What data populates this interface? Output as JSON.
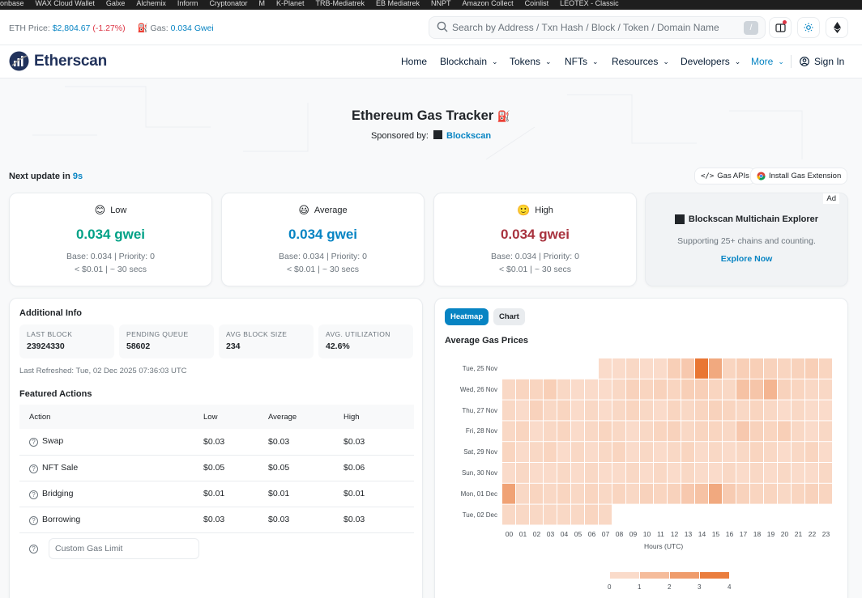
{
  "bookmarks": [
    "onbase",
    "WAX Cloud Wallet",
    "Galxe",
    "Alchemix",
    "Inform",
    "Cryptonator",
    "M",
    "K-Planet",
    "TRB-Mediatrek",
    "EB Mediatrek",
    "NNPT",
    "Amazon Collect",
    "Coinlist",
    "LEOTEX - Classic"
  ],
  "topbar": {
    "eth_price_label": "ETH Price:",
    "eth_price_value": "$2,804.67",
    "eth_price_change": "(-1.27%)",
    "gas_label": "Gas:",
    "gas_value": "0.034 Gwei",
    "search_placeholder": "Search by Address / Txn Hash / Block / Token / Domain Name",
    "search_shortcut": "/"
  },
  "nav": {
    "logo_text": "Etherscan",
    "items": [
      "Home",
      "Blockchain",
      "Tokens",
      "NFTs",
      "Resources",
      "Developers",
      "More"
    ],
    "signin": "Sign In"
  },
  "hero": {
    "title": "Ethereum Gas Tracker",
    "sponsor_label": "Sponsored by:",
    "sponsor_name": "Blockscan"
  },
  "next_update": {
    "label": "Next update in",
    "value": "9s"
  },
  "buttons": {
    "gas_apis": "Gas APIs",
    "install_ext": "Install Gas Extension"
  },
  "gas_cards": [
    {
      "level": "Low",
      "emoji": "😊",
      "gwei": "0.034 gwei",
      "color": "#00a186",
      "base": "Base: 0.034 | Priority: 0",
      "cost": "< $0.01 | ~ 30 secs"
    },
    {
      "level": "Average",
      "emoji": "😃",
      "gwei": "0.034 gwei",
      "color": "#0784c3",
      "base": "Base: 0.034 | Priority: 0",
      "cost": "< $0.01 | ~ 30 secs"
    },
    {
      "level": "High",
      "emoji": "🙂",
      "gwei": "0.034 gwei",
      "color": "#a8323e",
      "base": "Base: 0.034 | Priority: 0",
      "cost": "< $0.01 | ~ 30 secs"
    }
  ],
  "ad": {
    "tag": "Ad",
    "title": "Blockscan Multichain Explorer",
    "subtitle": "Supporting 25+ chains and counting.",
    "link": "Explore Now"
  },
  "info": {
    "title": "Additional Info",
    "stats": [
      {
        "label": "LAST BLOCK",
        "value": "23924330"
      },
      {
        "label": "PENDING QUEUE",
        "value": "58602"
      },
      {
        "label": "AVG BLOCK SIZE",
        "value": "234"
      },
      {
        "label": "AVG. UTILIZATION",
        "value": "42.6%"
      }
    ],
    "refreshed": "Last Refreshed: Tue, 02 Dec 2025 07:36:03 UTC",
    "featured_title": "Featured Actions",
    "columns": [
      "Action",
      "Low",
      "Average",
      "High"
    ],
    "rows": [
      {
        "action": "Swap",
        "low": "$0.03",
        "avg": "$0.03",
        "high": "$0.03"
      },
      {
        "action": "NFT Sale",
        "low": "$0.05",
        "avg": "$0.05",
        "high": "$0.06"
      },
      {
        "action": "Bridging",
        "low": "$0.01",
        "avg": "$0.01",
        "high": "$0.01"
      },
      {
        "action": "Borrowing",
        "low": "$0.03",
        "avg": "$0.03",
        "high": "$0.03"
      }
    ],
    "custom_placeholder": "Custom Gas Limit"
  },
  "heatmap_panel": {
    "tab_active": "Heatmap",
    "tab_inactive": "Chart"
  },
  "chart_data": {
    "type": "heatmap",
    "title": "Average Gas Prices",
    "xlabel": "Hours (UTC)",
    "x": [
      "00",
      "01",
      "02",
      "03",
      "04",
      "05",
      "06",
      "07",
      "08",
      "09",
      "10",
      "11",
      "12",
      "13",
      "14",
      "15",
      "16",
      "17",
      "18",
      "19",
      "20",
      "21",
      "22",
      "23"
    ],
    "y": [
      "Tue, 25 Nov",
      "Wed, 26 Nov",
      "Thu, 27 Nov",
      "Fri, 28 Nov",
      "Sat, 29 Nov",
      "Sun, 30 Nov",
      "Mon, 01 Dec",
      "Tue, 02 Dec"
    ],
    "values": [
      [
        null,
        null,
        null,
        null,
        null,
        null,
        null,
        0.6,
        0.6,
        0.7,
        0.6,
        0.6,
        1.0,
        1.2,
        3.8,
        2.2,
        0.8,
        1.0,
        1.0,
        0.9,
        0.8,
        0.9,
        1.0,
        0.8
      ],
      [
        0.7,
        0.8,
        0.8,
        1.0,
        0.7,
        0.6,
        0.6,
        0.6,
        0.7,
        0.9,
        0.8,
        0.9,
        0.8,
        1.0,
        1.0,
        0.8,
        0.7,
        1.4,
        1.3,
        1.8,
        0.9,
        0.8,
        0.7,
        0.7
      ],
      [
        0.7,
        0.6,
        0.9,
        0.7,
        0.8,
        0.6,
        0.7,
        0.6,
        0.7,
        0.8,
        0.7,
        0.6,
        0.8,
        0.7,
        0.8,
        0.9,
        0.8,
        0.7,
        0.8,
        0.7,
        0.6,
        0.7,
        0.6,
        0.6
      ],
      [
        0.7,
        0.8,
        0.6,
        0.7,
        0.8,
        0.6,
        0.7,
        0.8,
        0.7,
        0.6,
        0.7,
        0.8,
        0.9,
        0.7,
        0.8,
        0.8,
        0.7,
        1.2,
        0.9,
        0.8,
        1.0,
        0.7,
        0.6,
        0.7
      ],
      [
        0.8,
        0.6,
        0.7,
        0.8,
        0.6,
        0.7,
        0.6,
        0.7,
        0.8,
        0.6,
        0.7,
        0.6,
        0.7,
        0.8,
        0.6,
        0.7,
        0.6,
        0.7,
        0.8,
        0.7,
        0.6,
        0.7,
        0.8,
        0.6
      ],
      [
        0.6,
        0.7,
        0.6,
        0.6,
        0.7,
        0.6,
        0.7,
        0.6,
        0.6,
        0.7,
        0.6,
        0.7,
        0.6,
        0.7,
        0.6,
        0.6,
        0.7,
        0.6,
        0.7,
        0.6,
        0.7,
        0.6,
        0.6,
        0.7
      ],
      [
        2.4,
        0.7,
        0.8,
        0.7,
        0.8,
        0.7,
        0.8,
        0.7,
        0.8,
        0.7,
        0.9,
        0.8,
        0.9,
        1.2,
        1.4,
        2.2,
        1.1,
        0.9,
        0.8,
        0.8,
        0.7,
        0.8,
        0.9,
        0.8
      ],
      [
        0.7,
        0.7,
        0.7,
        0.7,
        0.7,
        0.7,
        0.8,
        0.7,
        null,
        null,
        null,
        null,
        null,
        null,
        null,
        null,
        null,
        null,
        null,
        null,
        null,
        null,
        null,
        null
      ]
    ],
    "scale": [
      0,
      1,
      2,
      3,
      4
    ],
    "colors": {
      "low": "#fdeee6",
      "high": "#e8702a"
    }
  }
}
